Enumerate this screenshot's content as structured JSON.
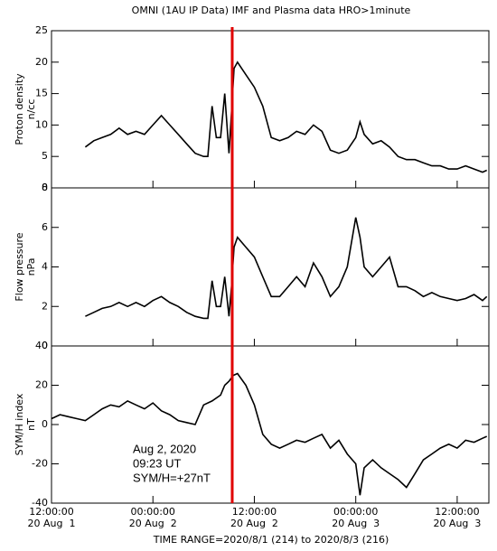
{
  "title": "OMNI (1AU IP Data)  IMF and Plasma data  HRO>1minute",
  "footer": "TIME RANGE=2020/8/1 (214) to 2020/8/3 (216)",
  "event": {
    "x": 33.383,
    "color": "#e00000",
    "lines": [
      "Aug 2, 2020",
      "09:23 UT",
      "SYM/H=+27nT"
    ]
  },
  "chart_data": [
    {
      "type": "line",
      "color": "#000000",
      "ylabel": [
        "Proton density",
        "n/cc"
      ],
      "ylim": [
        0,
        25
      ],
      "yticks": [
        0,
        5,
        10,
        15,
        20,
        25
      ],
      "xlim": [
        12,
        63.75
      ],
      "xticks": [
        12,
        24,
        36,
        48,
        60
      ],
      "x": [
        16,
        17,
        18,
        19,
        20,
        21,
        22,
        23,
        24,
        25,
        26,
        27,
        28,
        29,
        30,
        30.5,
        31,
        31.5,
        32,
        32.5,
        33,
        33.3,
        33.6,
        34,
        35,
        36,
        37,
        38,
        39,
        40,
        41,
        42,
        43,
        44,
        45,
        46,
        47,
        48,
        48.5,
        49,
        50,
        51,
        52,
        53,
        54,
        55,
        56,
        57,
        58,
        59,
        60,
        61,
        62,
        63,
        63.5
      ],
      "values": [
        6.5,
        7.5,
        8,
        8.5,
        9.5,
        8.5,
        9,
        8.5,
        10,
        11.5,
        10,
        8.5,
        7,
        5.5,
        5,
        5,
        13,
        8,
        8,
        15,
        5.5,
        12,
        19,
        20,
        18,
        16,
        13,
        8,
        7.5,
        8,
        9,
        8.5,
        10,
        9,
        6,
        5.5,
        6,
        8,
        10.5,
        8.5,
        7,
        7.5,
        6.5,
        5,
        4.5,
        4.5,
        4,
        3.5,
        3.5,
        3,
        3,
        3.5,
        3,
        2.5,
        2.8
      ]
    },
    {
      "type": "line",
      "color": "#000000",
      "ylabel": [
        "Flow pressure",
        "nPa"
      ],
      "ylim": [
        0,
        8
      ],
      "yticks": [
        0,
        2,
        4,
        6,
        8
      ],
      "xlim": [
        12,
        63.75
      ],
      "xticks": [
        12,
        24,
        36,
        48,
        60
      ],
      "x": [
        16,
        17,
        18,
        19,
        20,
        21,
        22,
        23,
        24,
        25,
        26,
        27,
        28,
        29,
        30,
        30.5,
        31,
        31.5,
        32,
        32.5,
        33,
        33.3,
        33.6,
        34,
        35,
        36,
        37,
        38,
        39,
        40,
        41,
        42,
        43,
        44,
        45,
        46,
        47,
        48,
        48.5,
        49,
        50,
        51,
        52,
        53,
        54,
        55,
        56,
        57,
        58,
        59,
        60,
        61,
        62,
        63,
        63.5
      ],
      "values": [
        1.5,
        1.7,
        1.9,
        2,
        2.2,
        2,
        2.2,
        2,
        2.3,
        2.5,
        2.2,
        2,
        1.7,
        1.5,
        1.4,
        1.4,
        3.3,
        2,
        2,
        3.5,
        1.5,
        3,
        5,
        5.5,
        5,
        4.5,
        3.5,
        2.5,
        2.5,
        3,
        3.5,
        3,
        4.2,
        3.5,
        2.5,
        3,
        4,
        6.5,
        5.5,
        4,
        3.5,
        4,
        4.5,
        3,
        3,
        2.8,
        2.5,
        2.7,
        2.5,
        2.4,
        2.3,
        2.4,
        2.6,
        2.3,
        2.5
      ]
    },
    {
      "type": "line",
      "color": "#000000",
      "ylabel": [
        "SYM/H index",
        "nT"
      ],
      "ylim": [
        -40,
        40
      ],
      "yticks": [
        -40,
        -20,
        0,
        20,
        40
      ],
      "xlim": [
        12,
        63.75
      ],
      "xticks": [
        {
          "value": 12,
          "label": "12:00:00",
          "date": "20 Aug  1"
        },
        {
          "value": 24,
          "label": "00:00:00",
          "date": "20 Aug  2"
        },
        {
          "value": 36,
          "label": "12:00:00",
          "date": "20 Aug  2"
        },
        {
          "value": 48,
          "label": "00:00:00",
          "date": "20 Aug  3"
        },
        {
          "value": 60,
          "label": "12:00:00",
          "date": "20 Aug  3"
        }
      ],
      "x": [
        12,
        13,
        14,
        15,
        16,
        17,
        18,
        19,
        20,
        21,
        22,
        23,
        24,
        25,
        26,
        27,
        28,
        29,
        30,
        31,
        32,
        32.5,
        33,
        33.5,
        34,
        35,
        36,
        37,
        38,
        39,
        40,
        41,
        42,
        43,
        44,
        45,
        46,
        47,
        48,
        48.5,
        49,
        50,
        51,
        52,
        53,
        54,
        55,
        56,
        57,
        58,
        59,
        60,
        61,
        62,
        63,
        63.5
      ],
      "values": [
        3,
        5,
        4,
        3,
        2,
        5,
        8,
        10,
        9,
        12,
        10,
        8,
        11,
        7,
        5,
        2,
        1,
        0,
        10,
        12,
        15,
        20,
        22,
        25,
        26,
        20,
        10,
        -5,
        -10,
        -12,
        -10,
        -8,
        -9,
        -7,
        -5,
        -12,
        -8,
        -15,
        -20,
        -36,
        -22,
        -18,
        -22,
        -25,
        -28,
        -32,
        -25,
        -18,
        -15,
        -12,
        -10,
        -12,
        -8,
        -9,
        -7,
        -6
      ]
    }
  ]
}
